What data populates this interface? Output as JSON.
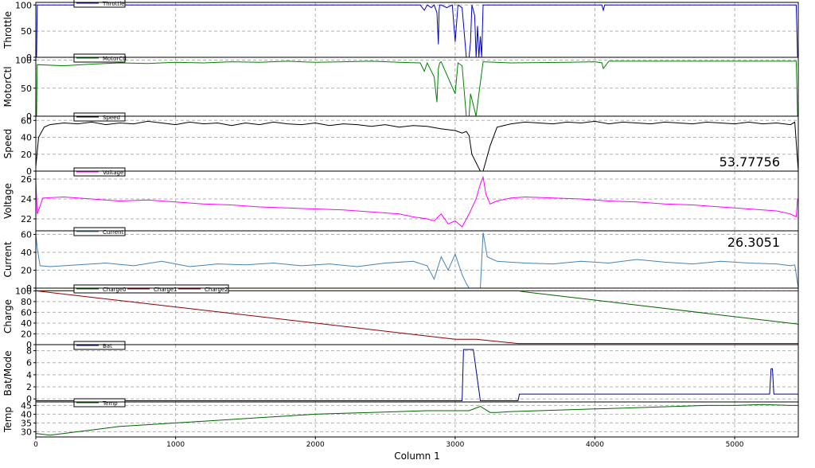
{
  "chart_data": [
    {
      "type": "line",
      "ylabel": "Throttle",
      "ylim": [
        0,
        105
      ],
      "yticks": [
        "0",
        "50",
        "100"
      ],
      "ytick_values": [
        0,
        50,
        100
      ],
      "series": [
        {
          "name": "Throttle",
          "color": "#0000cc",
          "x": [
            0,
            5,
            10,
            2750,
            2780,
            2800,
            2830,
            2850,
            2870,
            2880,
            2885,
            2890,
            2900,
            2940,
            2980,
            3000,
            3020,
            3050,
            3080,
            3100,
            3110,
            3120,
            3140,
            3150,
            3160,
            3170,
            3180,
            3190,
            3200,
            3220,
            3400,
            4000,
            4050,
            4060,
            4070,
            4100,
            4500,
            5000,
            5400,
            5440,
            5450,
            5455
          ],
          "values": [
            0,
            0,
            100,
            100,
            90,
            100,
            95,
            100,
            85,
            25,
            90,
            100,
            100,
            95,
            100,
            30,
            100,
            95,
            0,
            0,
            30,
            100,
            80,
            0,
            60,
            0,
            40,
            0,
            100,
            100,
            100,
            100,
            100,
            90,
            100,
            100,
            100,
            100,
            100,
            100,
            0,
            0
          ]
        }
      ]
    },
    {
      "type": "line",
      "ylabel": "MotorCtl",
      "ylim": [
        0,
        105
      ],
      "yticks": [
        "0",
        "50",
        "100"
      ],
      "ytick_values": [
        0,
        50,
        100
      ],
      "series": [
        {
          "name": "MotorCtl",
          "color": "#008000",
          "x": [
            0,
            5,
            10,
            200,
            400,
            600,
            800,
            1000,
            1200,
            1400,
            1600,
            1800,
            2000,
            2200,
            2400,
            2600,
            2750,
            2780,
            2800,
            2850,
            2870,
            2880,
            2890,
            2900,
            3000,
            3020,
            3050,
            3080,
            3100,
            3110,
            3150,
            3170,
            3200,
            3400,
            3800,
            4000,
            4050,
            4060,
            4100,
            4500,
            5000,
            5400,
            5440,
            5450,
            5455
          ],
          "values": [
            0,
            0,
            92,
            90,
            93,
            95,
            94,
            96,
            95,
            97,
            96,
            98,
            96,
            97,
            98,
            96,
            95,
            80,
            95,
            70,
            25,
            85,
            95,
            97,
            40,
            95,
            90,
            0,
            0,
            40,
            0,
            40,
            97,
            95,
            96,
            97,
            95,
            85,
            98,
            98,
            98,
            98,
            98,
            0,
            0
          ]
        }
      ]
    },
    {
      "type": "line",
      "ylabel": "Speed",
      "ylim": [
        0,
        65
      ],
      "yticks": [
        "0",
        "20",
        "40",
        "60"
      ],
      "ytick_values": [
        0,
        20,
        40,
        60
      ],
      "annotation": "53.77756",
      "series": [
        {
          "name": "Speed",
          "color": "#000000",
          "x": [
            0,
            20,
            60,
            100,
            200,
            300,
            400,
            500,
            600,
            700,
            800,
            900,
            1000,
            1100,
            1200,
            1300,
            1400,
            1500,
            1600,
            1700,
            1800,
            1900,
            2000,
            2100,
            2200,
            2300,
            2400,
            2500,
            2600,
            2700,
            2800,
            2900,
            3000,
            3050,
            3080,
            3100,
            3120,
            3180,
            3200,
            3250,
            3300,
            3400,
            3500,
            3600,
            3700,
            3800,
            3900,
            4000,
            4100,
            4200,
            4300,
            4400,
            4500,
            4600,
            4700,
            4800,
            4900,
            5000,
            5100,
            5200,
            5300,
            5400,
            5430,
            5455
          ],
          "values": [
            5,
            40,
            52,
            55,
            57,
            56,
            58,
            55,
            57,
            56,
            59,
            57,
            55,
            58,
            56,
            57,
            54,
            57,
            55,
            58,
            56,
            55,
            57,
            54,
            56,
            55,
            53,
            55,
            52,
            54,
            53,
            50,
            48,
            45,
            47,
            42,
            20,
            0,
            0,
            30,
            52,
            56,
            58,
            57,
            56,
            58,
            57,
            59,
            56,
            58,
            57,
            56,
            58,
            57,
            56,
            58,
            57,
            56,
            58,
            56,
            57,
            55,
            58,
            0
          ]
        }
      ]
    },
    {
      "type": "line",
      "ylabel": "Voltage",
      "ylim": [
        20.8,
        26.8
      ],
      "yticks": [
        "22",
        "24",
        "26"
      ],
      "ytick_values": [
        22,
        24,
        26
      ],
      "series": [
        {
          "name": "Voltage",
          "color": "#ff00ff",
          "x": [
            0,
            10,
            50,
            200,
            400,
            600,
            800,
            1000,
            1200,
            1400,
            1600,
            1800,
            2000,
            2200,
            2400,
            2600,
            2700,
            2800,
            2850,
            2900,
            2950,
            3000,
            3050,
            3100,
            3150,
            3180,
            3200,
            3220,
            3250,
            3300,
            3400,
            3500,
            3700,
            3900,
            4100,
            4300,
            4500,
            4700,
            4900,
            5100,
            5300,
            5400,
            5440,
            5450,
            5455
          ],
          "values": [
            26,
            22.5,
            24.1,
            24.2,
            24.0,
            23.8,
            23.9,
            23.7,
            23.5,
            23.4,
            23.2,
            23.1,
            23.0,
            22.9,
            22.7,
            22.5,
            22.2,
            22.0,
            21.8,
            22.5,
            21.5,
            21.8,
            21.2,
            22.5,
            24.0,
            25.5,
            26.2,
            24.5,
            23.5,
            23.8,
            24.1,
            24.2,
            24.1,
            24.0,
            23.8,
            23.7,
            23.5,
            23.4,
            23.2,
            23.0,
            22.8,
            22.5,
            22.2,
            24.0,
            24.0
          ]
        }
      ]
    },
    {
      "type": "line",
      "ylabel": "Current",
      "ylim": [
        0,
        64
      ],
      "yticks": [
        "0",
        "20",
        "40",
        "60"
      ],
      "ytick_values": [
        0,
        20,
        40,
        60
      ],
      "annotation": "26.3051",
      "series": [
        {
          "name": "Current",
          "color": "#4682b4",
          "x": [
            0,
            10,
            30,
            100,
            300,
            500,
            700,
            900,
            1100,
            1300,
            1500,
            1700,
            1900,
            2100,
            2300,
            2500,
            2700,
            2800,
            2850,
            2900,
            2950,
            3000,
            3050,
            3080,
            3100,
            3150,
            3180,
            3200,
            3230,
            3300,
            3500,
            3700,
            3900,
            4100,
            4300,
            4500,
            4700,
            4900,
            5100,
            5300,
            5400,
            5430,
            5455
          ],
          "values": [
            60,
            45,
            25,
            24,
            26,
            28,
            25,
            30,
            24,
            27,
            26,
            28,
            25,
            27,
            24,
            28,
            30,
            25,
            10,
            35,
            20,
            38,
            15,
            5,
            0,
            0,
            0,
            62,
            35,
            30,
            28,
            27,
            30,
            28,
            32,
            29,
            27,
            30,
            28,
            27,
            25,
            26,
            0
          ]
        }
      ]
    },
    {
      "type": "line",
      "ylabel": "Charge",
      "ylim": [
        0,
        105
      ],
      "yticks": [
        "0",
        "20",
        "40",
        "60",
        "80",
        "100"
      ],
      "ytick_values": [
        0,
        20,
        40,
        60,
        80,
        100
      ],
      "series": [
        {
          "name": "Charge0",
          "color": "#006400",
          "x": [
            0,
            3450,
            3500,
            5455
          ],
          "values": [
            100,
            100,
            98,
            38
          ]
        },
        {
          "name": "Charge1",
          "color": "#8b0000",
          "x": [
            0,
            5455
          ],
          "values": [
            100,
            100
          ]
        },
        {
          "name": "Charge2",
          "color": "#8b0000",
          "x": [
            0,
            3000,
            3150,
            3450,
            5455
          ],
          "values": [
            100,
            10,
            10,
            2,
            2
          ]
        }
      ]
    },
    {
      "type": "line",
      "ylabel": "Bat/Mode",
      "ylim": [
        -0.5,
        9
      ],
      "yticks": [
        "0",
        "2",
        "4",
        "6",
        "8"
      ],
      "ytick_values": [
        0,
        2,
        4,
        6,
        8
      ],
      "series": [
        {
          "name": "Bat",
          "color": "#00008b",
          "x": [
            0,
            3050,
            3060,
            3130,
            3180,
            3450,
            3460,
            5250,
            5260,
            5270,
            5280,
            5455
          ],
          "values": [
            -0.3,
            -0.3,
            8.2,
            8.2,
            -0.3,
            -0.3,
            0.8,
            0.8,
            5,
            5,
            0.8,
            0.8
          ]
        }
      ]
    },
    {
      "type": "line",
      "ylabel": "Temp",
      "ylim": [
        27,
        47
      ],
      "yticks": [
        "30",
        "35",
        "40",
        "45"
      ],
      "ytick_values": [
        30,
        35,
        40,
        45
      ],
      "series": [
        {
          "name": "Temp",
          "color": "#006400",
          "x": [
            0,
            100,
            200,
            300,
            400,
            600,
            800,
            1000,
            1200,
            1400,
            1600,
            1800,
            2000,
            2200,
            2400,
            2600,
            2800,
            3000,
            3100,
            3180,
            3250,
            3300,
            3400,
            3600,
            3800,
            4000,
            4200,
            4400,
            4600,
            4800,
            5000,
            5200,
            5400,
            5455
          ],
          "values": [
            29,
            28,
            29,
            30,
            31,
            33,
            34,
            35,
            36,
            37,
            38,
            39,
            40,
            40.5,
            41,
            41.5,
            42,
            42,
            42,
            44.5,
            41,
            41,
            41.5,
            42,
            42.5,
            43,
            43.5,
            44,
            44.5,
            45,
            45,
            45.5,
            45,
            45
          ]
        }
      ]
    }
  ],
  "xaxis": {
    "label": "Column 1",
    "range": [
      0,
      5455
    ],
    "ticks": [
      "0",
      "1000",
      "2000",
      "3000",
      "4000",
      "5000"
    ],
    "tick_values": [
      0,
      1000,
      2000,
      3000,
      4000,
      5000
    ]
  },
  "colors": {
    "grid": "#b0b0b0",
    "axis": "#000000",
    "background": "#ffffff"
  }
}
